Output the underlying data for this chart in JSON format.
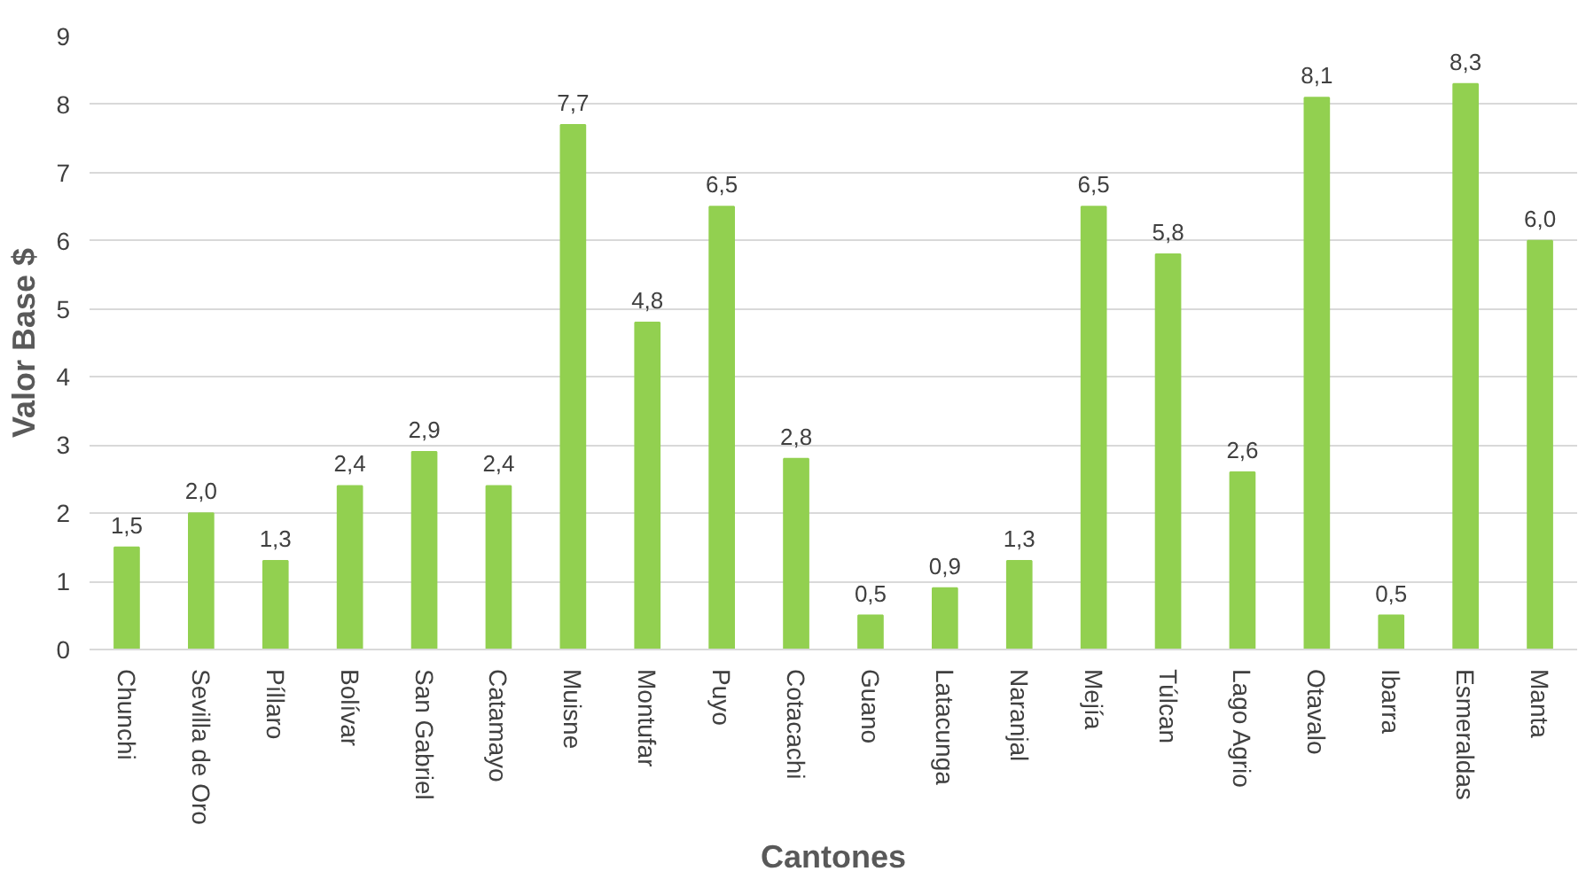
{
  "chart_data": {
    "type": "bar",
    "xlabel": "Cantones",
    "ylabel": "Valor Base $",
    "categories": [
      "Chunchi",
      "Sevilla de Oro",
      "Píllaro",
      "Bolívar",
      "San Gabriel",
      "Catamayo",
      "Muisne",
      "Montufar",
      "Puyo",
      "Cotacachi",
      "Guano",
      "Latacunga",
      "Naranjal",
      "Mejía",
      "Túlcan",
      "Lago Agrio",
      "Otavalo",
      "Ibarra",
      "Esmeraldas",
      "Manta"
    ],
    "values": [
      1.5,
      2.0,
      1.3,
      2.4,
      2.9,
      2.4,
      7.7,
      4.8,
      6.5,
      2.8,
      0.5,
      0.9,
      1.3,
      6.5,
      5.8,
      2.6,
      8.1,
      0.5,
      8.3,
      6.0
    ],
    "value_labels": [
      "1,5",
      "2,0",
      "1,3",
      "2,4",
      "2,9",
      "2,4",
      "7,7",
      "4,8",
      "6,5",
      "2,8",
      "0,5",
      "0,9",
      "1,3",
      "6,5",
      "5,8",
      "2,6",
      "8,1",
      "0,5",
      "8,3",
      "6,0"
    ],
    "color": "#92d050",
    "ylim": [
      0,
      9
    ],
    "yticks": [
      0,
      1,
      2,
      3,
      4,
      5,
      6,
      7,
      8,
      9
    ],
    "grid": "y"
  }
}
